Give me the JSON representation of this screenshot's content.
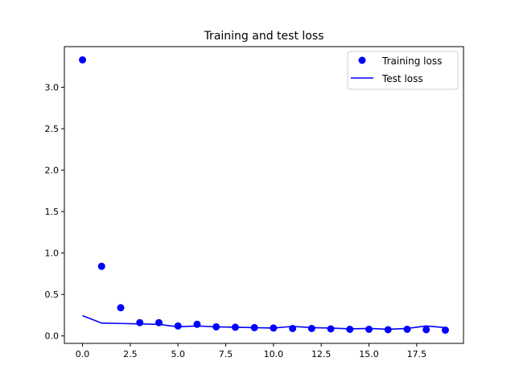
{
  "chart_data": {
    "type": "line",
    "title": "Training and test loss",
    "xlabel": "",
    "ylabel": "",
    "xlim": [
      -0.95,
      19.95
    ],
    "ylim": [
      -0.09,
      3.49
    ],
    "xticks": [
      0.0,
      2.5,
      5.0,
      7.5,
      10.0,
      12.5,
      15.0,
      17.5
    ],
    "xtick_labels": [
      "0.0",
      "2.5",
      "5.0",
      "7.5",
      "10.0",
      "12.5",
      "15.0",
      "17.5"
    ],
    "yticks": [
      0.0,
      0.5,
      1.0,
      1.5,
      2.0,
      2.5,
      3.0
    ],
    "ytick_labels": [
      "0.0",
      "0.5",
      "1.0",
      "1.5",
      "2.0",
      "2.5",
      "3.0"
    ],
    "legend_position": "top-right",
    "series": [
      {
        "name": "Training loss",
        "style": "scatter",
        "color": "#0000ff",
        "x": [
          0,
          1,
          2,
          3,
          4,
          5,
          6,
          7,
          8,
          9,
          10,
          11,
          12,
          13,
          14,
          15,
          16,
          17,
          18,
          19
        ],
        "values": [
          3.33,
          0.84,
          0.34,
          0.16,
          0.16,
          0.12,
          0.14,
          0.11,
          0.105,
          0.1,
          0.095,
          0.09,
          0.09,
          0.085,
          0.08,
          0.08,
          0.075,
          0.08,
          0.075,
          0.07
        ]
      },
      {
        "name": "Test loss",
        "style": "line",
        "color": "#0000ff",
        "x": [
          0,
          1,
          2,
          3,
          4,
          5,
          6,
          7,
          8,
          9,
          10,
          11,
          12,
          13,
          14,
          15,
          16,
          17,
          18,
          19
        ],
        "values": [
          0.245,
          0.155,
          0.15,
          0.145,
          0.14,
          0.11,
          0.12,
          0.11,
          0.105,
          0.1,
          0.095,
          0.115,
          0.1,
          0.095,
          0.085,
          0.09,
          0.08,
          0.09,
          0.12,
          0.1
        ]
      }
    ]
  }
}
